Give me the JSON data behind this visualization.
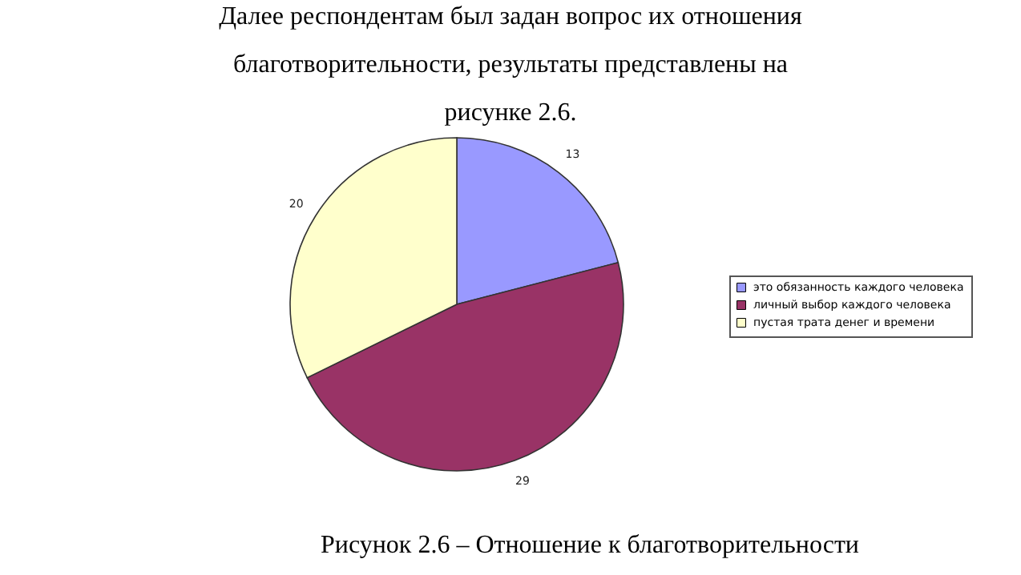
{
  "chart_data": {
    "type": "pie",
    "categories": [
      "это обязанность каждого человека",
      "личный выбор каждого человека",
      "пустая трата денег и времени"
    ],
    "values": [
      13,
      29,
      20
    ],
    "colors": [
      "#9999ff",
      "#993366",
      "#ffffcc"
    ],
    "data_labels": true,
    "legend": "right",
    "annotations": [
      "Далее респондентам был задан вопрос их отношения благотворительности, результаты представлены на рисунке 2.6.",
      "Рисунок 2.6 – Отношение к благотворительности"
    ]
  }
}
